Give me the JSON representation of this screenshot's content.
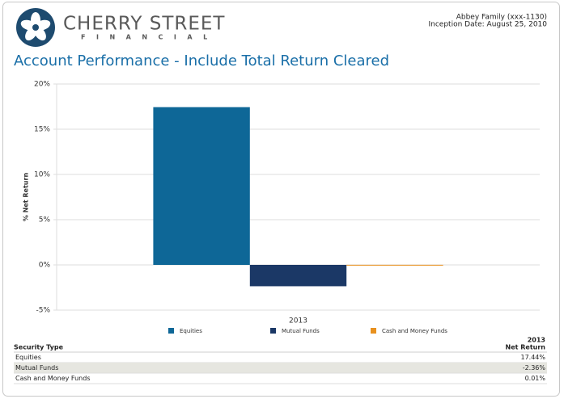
{
  "header": {
    "brand": "CHERRY STREET",
    "brand_sub": "FINANCIAL",
    "account": "Abbey Family (xxx-1130)",
    "inception": "Inception Date: August 25, 2010"
  },
  "chart_data": {
    "type": "bar",
    "title": "Account Performance - Include Total Return Cleared",
    "y_label": "% Net Return",
    "categories": [
      "2013"
    ],
    "series": [
      {
        "name": "Equities",
        "color": "#0e6797",
        "values": [
          17.44
        ]
      },
      {
        "name": "Mutual Funds",
        "color": "#1b3866",
        "values": [
          -2.36
        ]
      },
      {
        "name": "Cash and Money Funds",
        "color": "#e8911f",
        "values": [
          0.01
        ]
      }
    ],
    "ylim": [
      -5,
      20
    ],
    "yticks": [
      {
        "value": -5,
        "label": "-5%"
      },
      {
        "value": 0,
        "label": "0%"
      },
      {
        "value": 5,
        "label": "5%"
      },
      {
        "value": 10,
        "label": "10%"
      },
      {
        "value": 15,
        "label": "15%"
      },
      {
        "value": 20,
        "label": "20%"
      }
    ],
    "grid": true,
    "legend": "bottom"
  },
  "table": {
    "header": [
      "Security Type",
      "2013",
      "Net Return"
    ],
    "rows": [
      [
        "Equities",
        "17.44%"
      ],
      [
        "Mutual Funds",
        "-2.36%"
      ],
      [
        "Cash and Money Funds",
        "0.01%"
      ]
    ]
  }
}
